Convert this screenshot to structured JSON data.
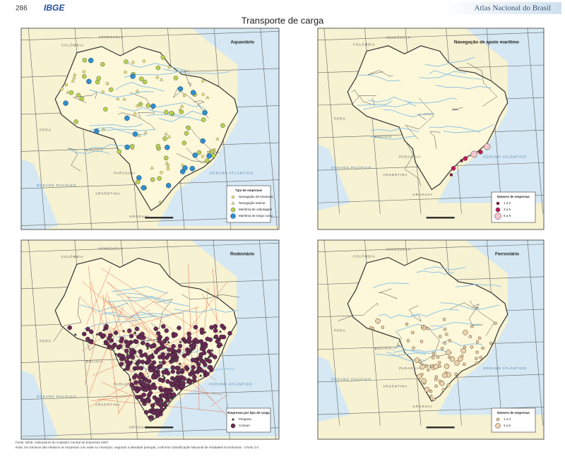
{
  "header": {
    "page_number": "286",
    "logo": "IBGE",
    "atlas": "Atlas Nacional do Brasil",
    "title": "Transporte de carga"
  },
  "maps": [
    {
      "title": "Aquaviário",
      "legend": {
        "title": "Tipo de empresas",
        "items": [
          "Navegação de travessia",
          "Navegação interior",
          "Marítima de cabotagem",
          "Marítima de longo curso"
        ]
      }
    },
    {
      "title": "Navegação de apoio marítimo",
      "legend": {
        "title": "Número de empresas",
        "items": [
          "1 a 2",
          "3 a 5",
          "6 a 9"
        ]
      }
    },
    {
      "title": "Rodoviário",
      "legend": {
        "title": "Empresas por tipo de carga",
        "items": [
          "Perigosa",
          "Comum"
        ]
      }
    },
    {
      "title": "Ferroviário",
      "legend": {
        "title": "Número de empresas",
        "items": [
          "1 a 3",
          "4 a 6"
        ]
      }
    }
  ],
  "map_labels": [
    "COLÔMBIA",
    "VENEZUELA",
    "PERU",
    "BOLÍVIA",
    "PARAGUAI",
    "ARGENTINA",
    "URUGUAI",
    "OCEANO ATLÂNTICO",
    "OCEANO PACÍFICO"
  ],
  "footer": {
    "source": "Fonte: IBGE, Indicadores do Cadastro Central de Empresas 2007.",
    "note": "Nota: Os números são relativos às empresas com sede no município, segundo a atividade principal, conforme Classificação Nacional de Atividades Econômicas - CNAE 2.0."
  }
}
